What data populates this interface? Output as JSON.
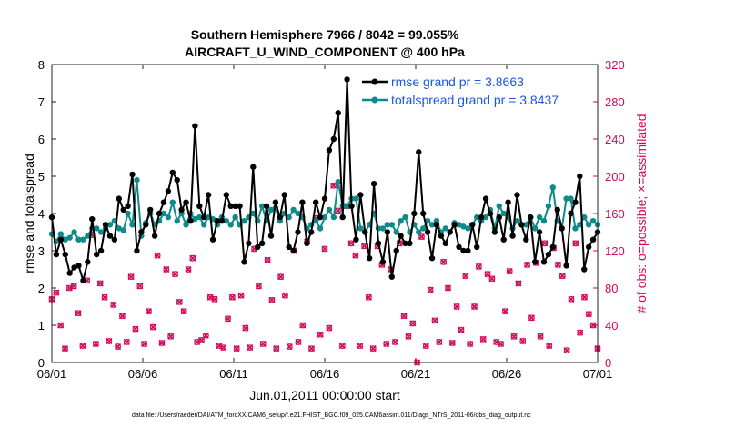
{
  "chart_data": {
    "type": "line",
    "title_line1": "Southern Hemisphere 7966 / 8042 = 99.055%",
    "title_line2": "AIRCRAFT_U_WIND_COMPONENT @ 400 hPa",
    "ylabel": "rmse and totalspread",
    "y2label": "# of obs: o=possible; ×=assimilated",
    "xlabel": "Jun.01,2011 00:00:00 start",
    "footnote": "data file: /Users/raeder/DAI/ATM_forcXX/CAM6_setup/f.e21.FHIST_BGC.f09_025.CAM6assim.011/Diags_NTrS_2011-06/obs_diag_output.nc",
    "x_range": [
      0,
      30
    ],
    "ylim": [
      0,
      8
    ],
    "y2lim": [
      0,
      320
    ],
    "x_ticks": [
      0,
      5,
      10,
      15,
      20,
      25,
      30
    ],
    "x_ticklabels": [
      "06/01",
      "06/06",
      "06/11",
      "06/16",
      "06/21",
      "06/26",
      "07/01"
    ],
    "y_ticks": [
      0,
      1,
      2,
      3,
      4,
      5,
      6,
      7,
      8
    ],
    "y_ticklabels": [
      "0",
      "1",
      "2",
      "3",
      "4",
      "5",
      "6",
      "7",
      "8"
    ],
    "y2_ticks": [
      0,
      40,
      80,
      120,
      160,
      200,
      240,
      280,
      320
    ],
    "y2_ticklabels": [
      "0",
      "40",
      "80",
      "120",
      "160",
      "200",
      "240",
      "280",
      "320"
    ],
    "legend_position": "top-right",
    "series": [
      {
        "name": "rmse grand pr = 3.8663",
        "color": "#000000",
        "axis": "left",
        "values": [
          3.9,
          2.9,
          3.3,
          2.9,
          2.4,
          2.55,
          2.6,
          2.2,
          2.7,
          3.85,
          2.9,
          3.0,
          3.7,
          3.4,
          3.3,
          4.4,
          4.1,
          4.2,
          5.05,
          3.0,
          3.5,
          3.7,
          4.1,
          3.4,
          4.0,
          4.3,
          4.6,
          5.1,
          4.9,
          4.1,
          4.3,
          3.8,
          6.35,
          4.2,
          3.9,
          4.5,
          3.3,
          3.8,
          3.8,
          4.5,
          4.2,
          4.2,
          4.2,
          2.7,
          3.2,
          5.25,
          3.1,
          3.2,
          4.2,
          3.4,
          4.3,
          3.9,
          4.5,
          3.1,
          3.0,
          3.5,
          4.3,
          3.2,
          3.5,
          4.3,
          3.9,
          4.4,
          5.7,
          6.0,
          6.7,
          3.9,
          7.6,
          4.2,
          3.3,
          4.5,
          3.5,
          2.8,
          4.8,
          3.2,
          2.7,
          3.5,
          2.3,
          3.0,
          3.4,
          3.2,
          3.2,
          4.0,
          5.65,
          4.0,
          3.5,
          2.8,
          3.7,
          3.4,
          3.2,
          3.5,
          3.7,
          3.1,
          3.0,
          3.0,
          3.7,
          3.1,
          3.9,
          4.4,
          4.0,
          3.5,
          3.9,
          3.3,
          4.3,
          3.4,
          4.5,
          3.7,
          3.3,
          3.9,
          2.7,
          3.5,
          2.7,
          2.9,
          3.1,
          4.1,
          3.6,
          2.6,
          4.0,
          4.3,
          5.0,
          2.5,
          3.1,
          3.3,
          3.5
        ]
      },
      {
        "name": "totalspread grand pr = 3.8437",
        "color": "#0f8a8a",
        "axis": "left",
        "values": [
          3.45,
          3.25,
          3.45,
          3.3,
          3.35,
          3.5,
          3.3,
          3.3,
          3.4,
          3.6,
          3.6,
          3.5,
          3.6,
          3.7,
          3.8,
          3.6,
          3.55,
          4.0,
          3.7,
          4.9,
          3.4,
          3.75,
          4.0,
          3.7,
          3.8,
          4.0,
          3.9,
          4.3,
          3.8,
          4.0,
          3.7,
          4.0,
          3.85,
          3.9,
          3.7,
          3.9,
          3.85,
          3.7,
          3.9,
          3.8,
          3.7,
          3.9,
          3.7,
          3.8,
          3.9,
          4.0,
          3.8,
          4.2,
          3.8,
          4.1,
          4.15,
          3.8,
          4.0,
          3.9,
          4.1,
          4.0,
          3.9,
          3.6,
          3.7,
          3.8,
          3.6,
          3.9,
          4.1,
          3.9,
          4.85,
          4.2,
          4.2,
          4.4,
          4.4,
          3.6,
          3.5,
          3.7,
          4.0,
          3.6,
          3.6,
          3.7,
          3.7,
          3.5,
          3.8,
          3.9,
          3.5,
          3.7,
          3.5,
          3.6,
          3.8,
          3.7,
          3.8,
          3.5,
          3.6,
          3.5,
          3.75,
          3.7,
          3.65,
          3.6,
          3.7,
          3.9,
          3.8,
          3.9,
          4.1,
          3.6,
          4.2,
          4.0,
          3.9,
          3.6,
          3.8,
          3.7,
          3.7,
          3.9,
          3.6,
          3.9,
          3.8,
          4.2,
          4.7,
          3.8,
          3.6,
          4.4,
          4.4,
          3.6,
          3.7,
          3.9,
          3.7,
          3.8,
          3.7
        ]
      },
      {
        "name": "obs possible",
        "color": "#d10a5a",
        "axis": "right",
        "marker": "o",
        "values": [
          68,
          75,
          40,
          15,
          80,
          82,
          53,
          18,
          88,
          137,
          20,
          85,
          70,
          23,
          62,
          17,
          50,
          22,
          92,
          36,
          82,
          20,
          55,
          38,
          115,
          21,
          100,
          28,
          95,
          65,
          55,
          100,
          112,
          22,
          24,
          29,
          70,
          68,
          18,
          16,
          47,
          70,
          15,
          72,
          37,
          16,
          122,
          82,
          20,
          110,
          67,
          15,
          92,
          72,
          17,
          120,
          22,
          40,
          130,
          15,
          155,
          30,
          122,
          37,
          190,
          163,
          18,
          168,
          128,
          115,
          18,
          125,
          70,
          15,
          125,
          105,
          20,
          100,
          22,
          128,
          50,
          28,
          42,
          0,
          135,
          18,
          78,
          45,
          22,
          108,
          80,
          21,
          60,
          35,
          93,
          20,
          60,
          103,
          25,
          95,
          90,
          22,
          20,
          55,
          98,
          28,
          85,
          23,
          105,
          48,
          107,
          28,
          128,
          18,
          123,
          105,
          93,
          13,
          68,
          128,
          32,
          70,
          52,
          40,
          15
        ]
      },
      {
        "name": "obs assimilated",
        "color": "#d10a5a",
        "axis": "right",
        "marker": "x",
        "values": [
          68,
          75,
          40,
          15,
          80,
          82,
          53,
          18,
          88,
          137,
          20,
          85,
          70,
          23,
          62,
          17,
          50,
          22,
          92,
          36,
          82,
          20,
          55,
          38,
          115,
          21,
          100,
          28,
          95,
          65,
          55,
          100,
          112,
          22,
          24,
          29,
          70,
          68,
          18,
          16,
          47,
          70,
          15,
          72,
          37,
          16,
          122,
          82,
          20,
          110,
          67,
          15,
          92,
          72,
          17,
          120,
          22,
          40,
          130,
          15,
          155,
          30,
          122,
          37,
          190,
          163,
          18,
          168,
          128,
          115,
          18,
          125,
          70,
          15,
          125,
          105,
          20,
          100,
          22,
          128,
          50,
          28,
          42,
          0,
          135,
          18,
          78,
          45,
          22,
          108,
          80,
          21,
          60,
          35,
          93,
          20,
          60,
          103,
          25,
          95,
          90,
          22,
          20,
          55,
          98,
          28,
          85,
          23,
          105,
          48,
          107,
          28,
          128,
          18,
          123,
          105,
          93,
          13,
          68,
          128,
          32,
          70,
          52,
          40,
          15
        ]
      }
    ]
  }
}
